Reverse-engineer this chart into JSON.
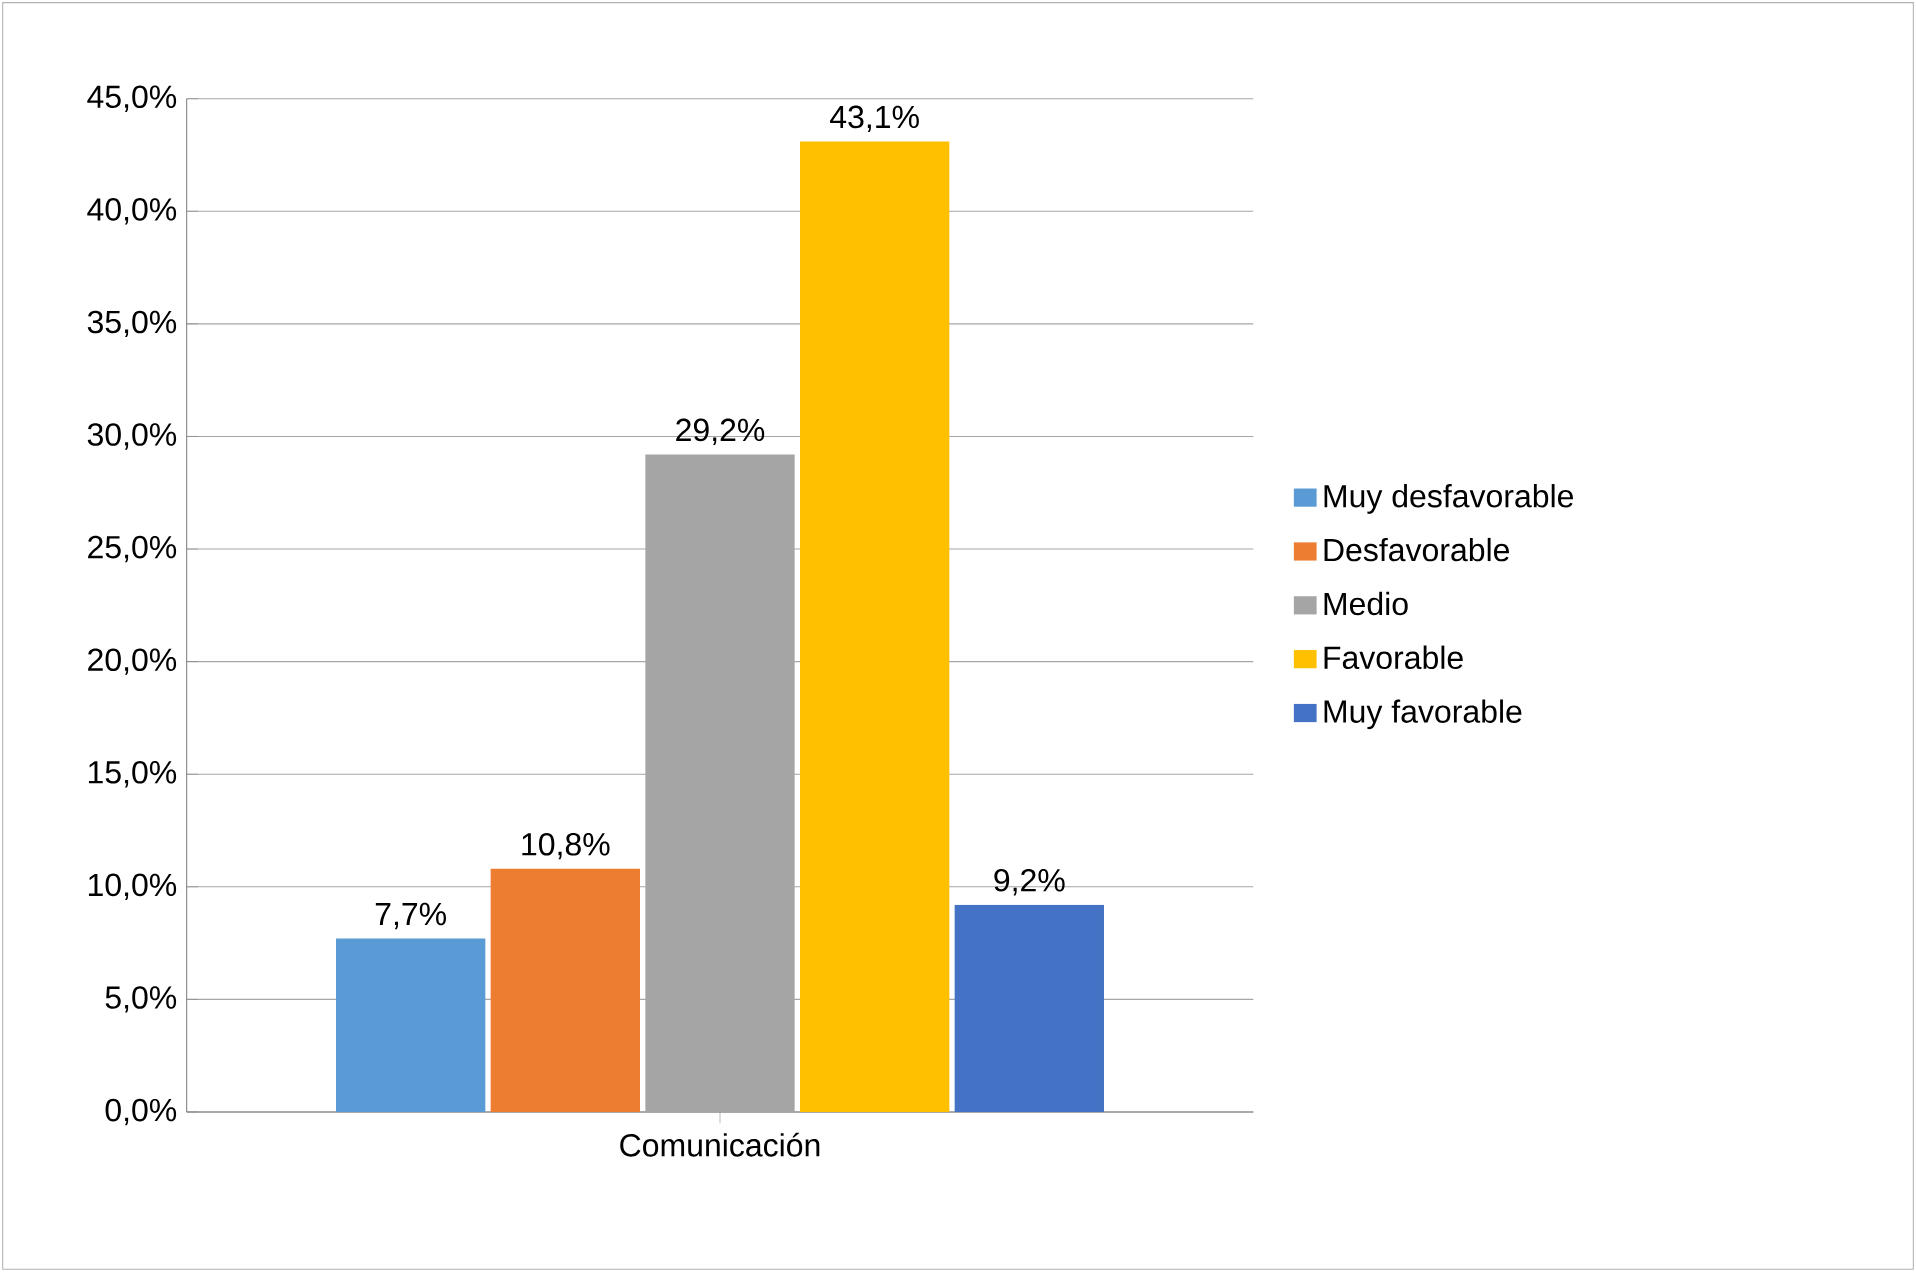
{
  "chart_data": {
    "type": "bar",
    "categories": [
      "Comunicación"
    ],
    "series": [
      {
        "name": "Muy desfavorable",
        "color": "#5b9bd5",
        "values": [
          7.7
        ],
        "value_labels": [
          "7,7%"
        ]
      },
      {
        "name": "Desfavorable",
        "color": "#ed7d31",
        "values": [
          10.8
        ],
        "value_labels": [
          "10,8%"
        ]
      },
      {
        "name": "Medio",
        "color": "#a5a5a5",
        "values": [
          29.2
        ],
        "value_labels": [
          "29,2%"
        ]
      },
      {
        "name": "Favorable",
        "color": "#ffc000",
        "values": [
          43.1
        ],
        "value_labels": [
          "43,1%"
        ]
      },
      {
        "name": "Muy favorable",
        "color": "#4472c4",
        "values": [
          9.2
        ],
        "value_labels": [
          "9,2%"
        ]
      }
    ],
    "ylim": [
      0,
      45
    ],
    "yticks": [
      {
        "value": 0,
        "label": "0,0%"
      },
      {
        "value": 5,
        "label": "5,0%"
      },
      {
        "value": 10,
        "label": "10,0%"
      },
      {
        "value": 15,
        "label": "15,0%"
      },
      {
        "value": 20,
        "label": "20,0%"
      },
      {
        "value": 25,
        "label": "25,0%"
      },
      {
        "value": 30,
        "label": "30,0%"
      },
      {
        "value": 35,
        "label": "35,0%"
      },
      {
        "value": 40,
        "label": "40,0%"
      },
      {
        "value": 45,
        "label": "45,0%"
      }
    ],
    "grid": "y",
    "legend": "right"
  }
}
